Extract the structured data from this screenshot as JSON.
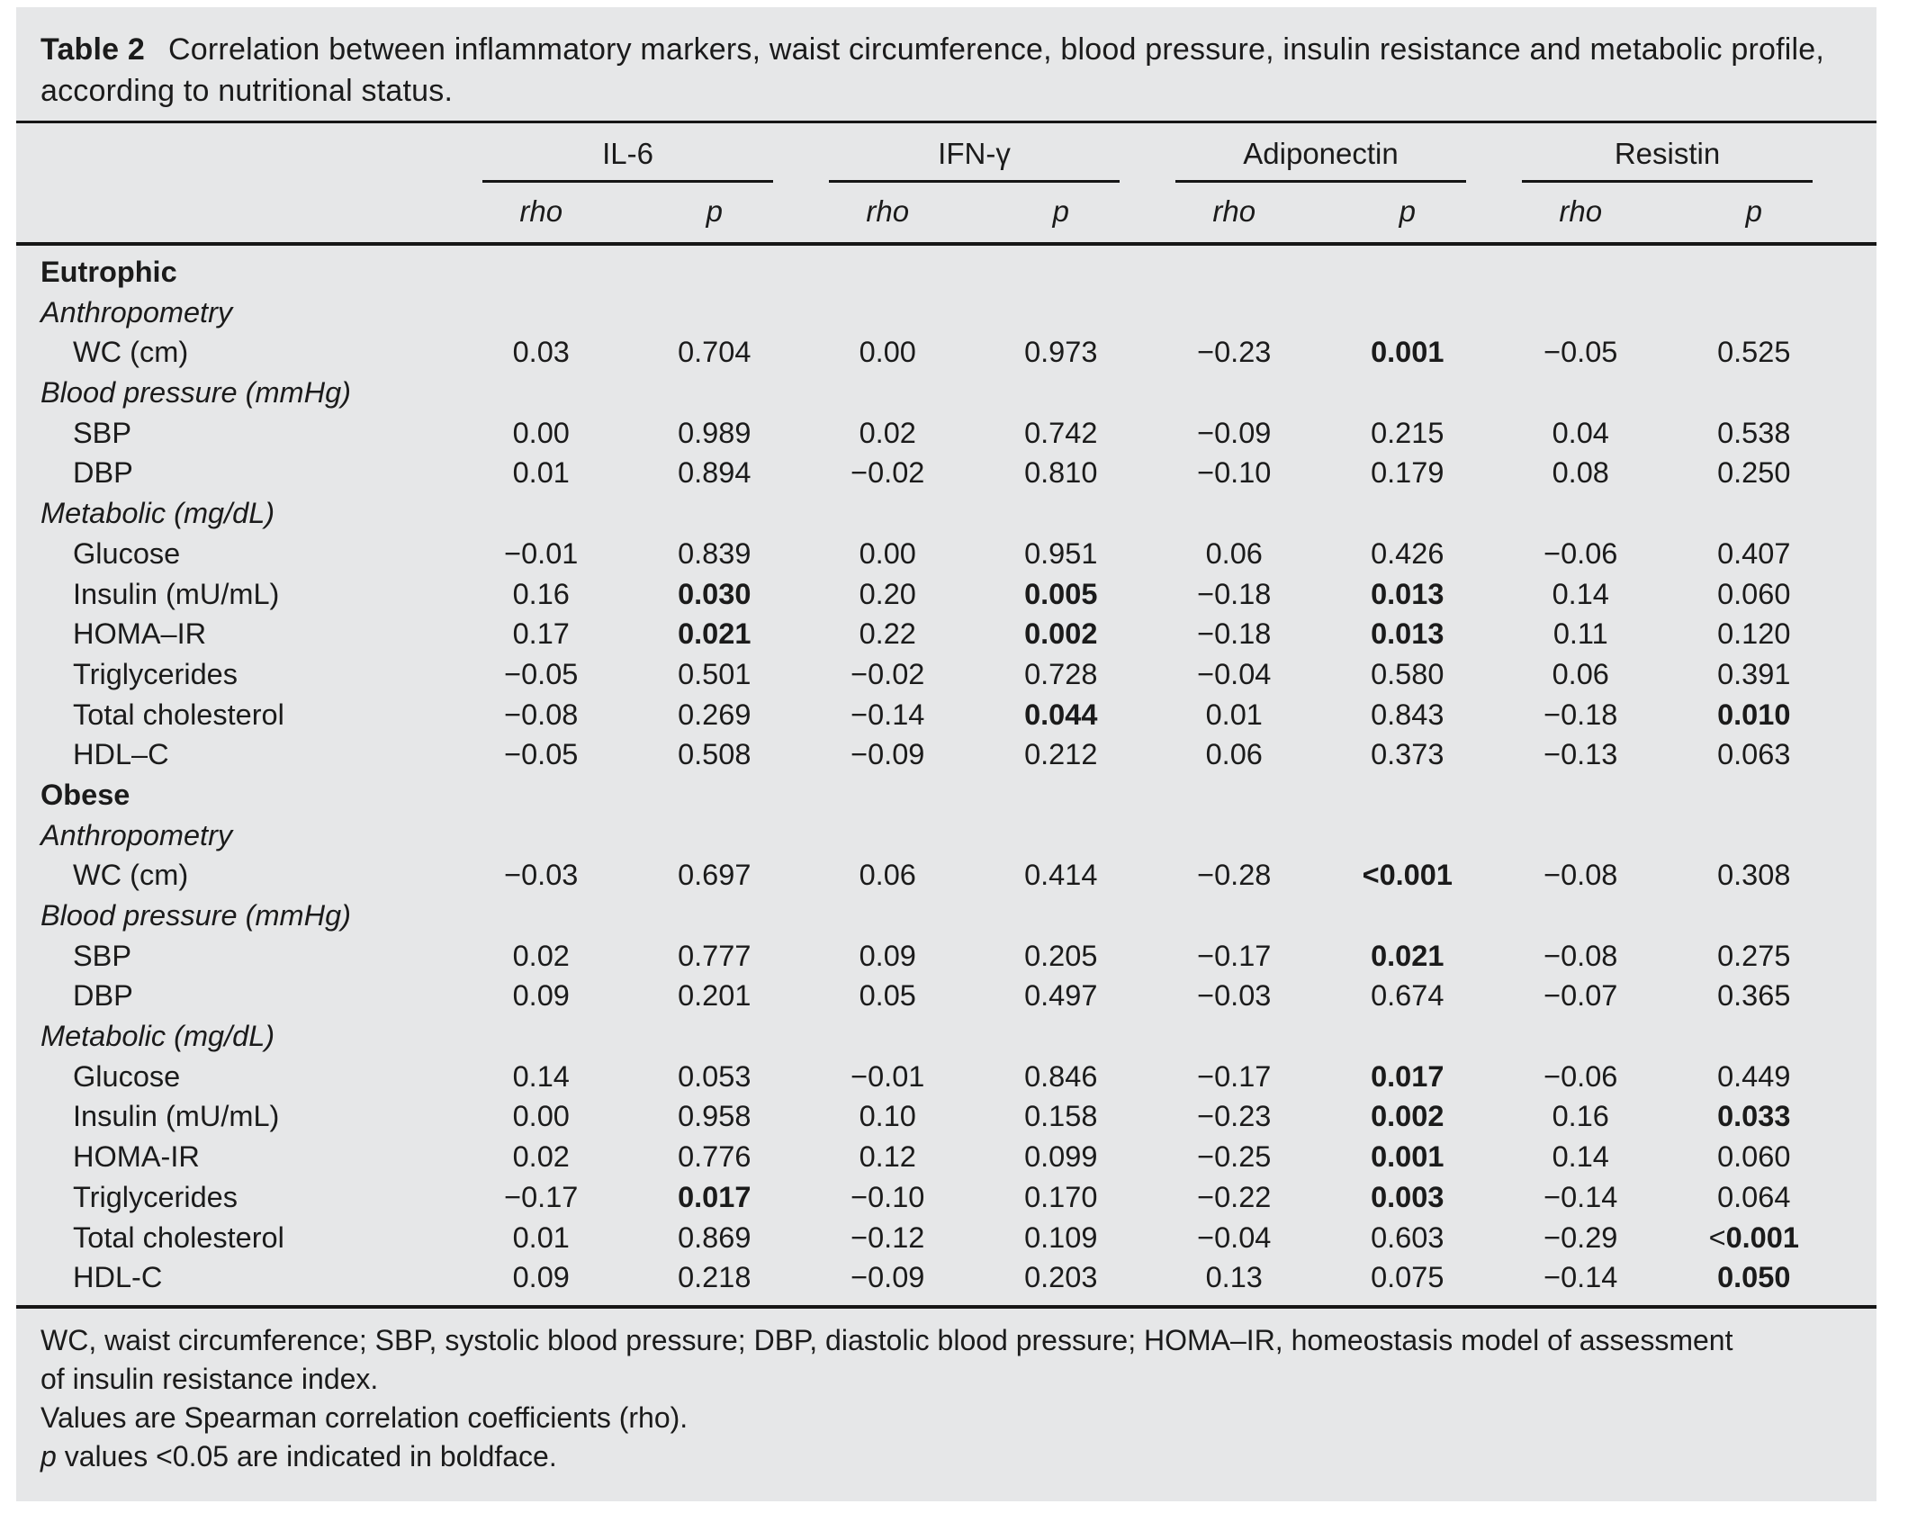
{
  "table": {
    "title_label": "Table 2",
    "title_text": "Correlation between inflammatory markers, waist circumference, blood pressure, insulin resistance and metabolic profile, according to nutritional status.",
    "groups": [
      "IL-6",
      "IFN-γ",
      "Adiponectin",
      "Resistin"
    ],
    "subheaders": [
      "rho",
      "p",
      "rho",
      "p",
      "rho",
      "p",
      "rho",
      "p"
    ],
    "rows": [
      {
        "type": "section-bold",
        "label": "Eutrophic"
      },
      {
        "type": "section-italic",
        "label": "Anthropometry"
      },
      {
        "type": "data",
        "label": "WC (cm)",
        "cells": [
          {
            "v": "0.03"
          },
          {
            "v": "0.704"
          },
          {
            "v": "0.00"
          },
          {
            "v": "0.973"
          },
          {
            "v": "−0.23"
          },
          {
            "v": "0.001",
            "b": true
          },
          {
            "v": "−0.05"
          },
          {
            "v": "0.525"
          }
        ]
      },
      {
        "type": "section-italic",
        "label": "Blood pressure (mmHg)"
      },
      {
        "type": "data",
        "label": "SBP",
        "cells": [
          {
            "v": "0.00"
          },
          {
            "v": "0.989"
          },
          {
            "v": "0.02"
          },
          {
            "v": "0.742"
          },
          {
            "v": "−0.09"
          },
          {
            "v": "0.215"
          },
          {
            "v": "0.04"
          },
          {
            "v": "0.538"
          }
        ]
      },
      {
        "type": "data",
        "label": "DBP",
        "cells": [
          {
            "v": "0.01"
          },
          {
            "v": "0.894"
          },
          {
            "v": "−0.02"
          },
          {
            "v": "0.810"
          },
          {
            "v": "−0.10"
          },
          {
            "v": "0.179"
          },
          {
            "v": "0.08"
          },
          {
            "v": "0.250"
          }
        ]
      },
      {
        "type": "section-italic",
        "label": "Metabolic (mg/dL)"
      },
      {
        "type": "data",
        "label": "Glucose",
        "cells": [
          {
            "v": "−0.01"
          },
          {
            "v": "0.839"
          },
          {
            "v": "0.00"
          },
          {
            "v": "0.951"
          },
          {
            "v": "0.06"
          },
          {
            "v": "0.426"
          },
          {
            "v": "−0.06"
          },
          {
            "v": "0.407"
          }
        ]
      },
      {
        "type": "data",
        "label": "Insulin (mU/mL)",
        "cells": [
          {
            "v": "0.16"
          },
          {
            "v": "0.030",
            "b": true
          },
          {
            "v": "0.20"
          },
          {
            "v": "0.005",
            "b": true
          },
          {
            "v": "−0.18"
          },
          {
            "v": "0.013",
            "b": true
          },
          {
            "v": "0.14"
          },
          {
            "v": "0.060"
          }
        ]
      },
      {
        "type": "data",
        "label": "HOMA–IR",
        "cells": [
          {
            "v": "0.17"
          },
          {
            "v": "0.021",
            "b": true
          },
          {
            "v": "0.22"
          },
          {
            "v": "0.002",
            "b": true
          },
          {
            "v": "−0.18"
          },
          {
            "v": "0.013",
            "b": true
          },
          {
            "v": "0.11"
          },
          {
            "v": "0.120"
          }
        ]
      },
      {
        "type": "data",
        "label": "Triglycerides",
        "cells": [
          {
            "v": "−0.05"
          },
          {
            "v": "0.501"
          },
          {
            "v": "−0.02"
          },
          {
            "v": "0.728"
          },
          {
            "v": "−0.04"
          },
          {
            "v": "0.580"
          },
          {
            "v": "0.06"
          },
          {
            "v": "0.391"
          }
        ]
      },
      {
        "type": "data",
        "label": "Total cholesterol",
        "cells": [
          {
            "v": "−0.08"
          },
          {
            "v": "0.269"
          },
          {
            "v": "−0.14"
          },
          {
            "v": "0.044",
            "b": true
          },
          {
            "v": "0.01"
          },
          {
            "v": "0.843"
          },
          {
            "v": "−0.18"
          },
          {
            "v": "0.010",
            "b": true
          }
        ]
      },
      {
        "type": "data",
        "label": "HDL–C",
        "cells": [
          {
            "v": "−0.05"
          },
          {
            "v": "0.508"
          },
          {
            "v": "−0.09"
          },
          {
            "v": "0.212"
          },
          {
            "v": "0.06"
          },
          {
            "v": "0.373"
          },
          {
            "v": "−0.13"
          },
          {
            "v": "0.063"
          }
        ]
      },
      {
        "type": "section-bold",
        "label": "Obese"
      },
      {
        "type": "section-italic",
        "label": "Anthropometry"
      },
      {
        "type": "data",
        "label": "WC (cm)",
        "cells": [
          {
            "v": "−0.03"
          },
          {
            "v": "0.697"
          },
          {
            "v": "0.06"
          },
          {
            "v": "0.414"
          },
          {
            "v": "−0.28"
          },
          {
            "v": "<0.001",
            "b": true
          },
          {
            "v": "−0.08"
          },
          {
            "v": "0.308"
          }
        ]
      },
      {
        "type": "section-italic",
        "label": "Blood pressure (mmHg)"
      },
      {
        "type": "data",
        "label": "SBP",
        "cells": [
          {
            "v": "0.02"
          },
          {
            "v": "0.777"
          },
          {
            "v": "0.09"
          },
          {
            "v": "0.205"
          },
          {
            "v": "−0.17"
          },
          {
            "v": "0.021",
            "b": true
          },
          {
            "v": "−0.08"
          },
          {
            "v": "0.275"
          }
        ]
      },
      {
        "type": "data",
        "label": "DBP",
        "cells": [
          {
            "v": "0.09"
          },
          {
            "v": "0.201"
          },
          {
            "v": "0.05"
          },
          {
            "v": "0.497"
          },
          {
            "v": "−0.03"
          },
          {
            "v": "0.674"
          },
          {
            "v": "−0.07"
          },
          {
            "v": "0.365"
          }
        ]
      },
      {
        "type": "section-italic",
        "label": "Metabolic (mg/dL)"
      },
      {
        "type": "data",
        "label": "Glucose",
        "cells": [
          {
            "v": "0.14"
          },
          {
            "v": "0.053"
          },
          {
            "v": "−0.01"
          },
          {
            "v": "0.846"
          },
          {
            "v": "−0.17"
          },
          {
            "v": "0.017",
            "b": true
          },
          {
            "v": "−0.06"
          },
          {
            "v": "0.449"
          }
        ]
      },
      {
        "type": "data",
        "label": "Insulin (mU/mL)",
        "cells": [
          {
            "v": "0.00"
          },
          {
            "v": "0.958"
          },
          {
            "v": "0.10"
          },
          {
            "v": "0.158"
          },
          {
            "v": "−0.23"
          },
          {
            "v": "0.002",
            "b": true
          },
          {
            "v": "0.16"
          },
          {
            "v": "0.033",
            "b": true
          }
        ]
      },
      {
        "type": "data",
        "label": "HOMA-IR",
        "cells": [
          {
            "v": "0.02"
          },
          {
            "v": "0.776"
          },
          {
            "v": "0.12"
          },
          {
            "v": "0.099"
          },
          {
            "v": "−0.25"
          },
          {
            "v": "0.001",
            "b": true
          },
          {
            "v": "0.14"
          },
          {
            "v": "0.060"
          }
        ]
      },
      {
        "type": "data",
        "label": "Triglycerides",
        "cells": [
          {
            "v": "−0.17"
          },
          {
            "v": "0.017",
            "b": true
          },
          {
            "v": "−0.10"
          },
          {
            "v": "0.170"
          },
          {
            "v": "−0.22"
          },
          {
            "v": "0.003",
            "b": true
          },
          {
            "v": "−0.14"
          },
          {
            "v": "0.064"
          }
        ]
      },
      {
        "type": "data",
        "label": "Total cholesterol",
        "cells": [
          {
            "v": "0.01"
          },
          {
            "v": "0.869"
          },
          {
            "v": "−0.12"
          },
          {
            "v": "0.109"
          },
          {
            "v": "−0.04"
          },
          {
            "v": "0.603"
          },
          {
            "v": "−0.29"
          },
          {
            "v": "0.001",
            "b": true,
            "pre": "<"
          }
        ]
      },
      {
        "type": "data",
        "label": "HDL-C",
        "cells": [
          {
            "v": "0.09"
          },
          {
            "v": "0.218"
          },
          {
            "v": "−0.09"
          },
          {
            "v": "0.203"
          },
          {
            "v": "0.13"
          },
          {
            "v": "0.075"
          },
          {
            "v": "−0.14"
          },
          {
            "v": "0.050",
            "b": true
          }
        ]
      }
    ],
    "footnotes": [
      {
        "italic_lead": "",
        "text": "WC, waist circumference; SBP, systolic blood pressure; DBP, diastolic blood pressure; HOMA–IR, homeostasis model of assessment"
      },
      {
        "italic_lead": "",
        "text": "of insulin resistance index."
      },
      {
        "italic_lead": "",
        "text": "Values are Spearman correlation coefficients (rho)."
      },
      {
        "italic_lead": "p",
        "text": " values <0.05 are indicated in boldface."
      }
    ],
    "colors": {
      "panel_background": "#e6e7e8",
      "text": "#1b1b1b",
      "rule": "#161616"
    }
  }
}
